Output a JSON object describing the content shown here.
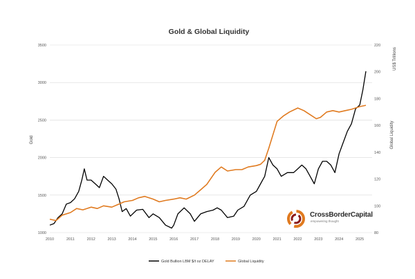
{
  "chart_data": {
    "type": "line",
    "title": "Gold & Global Liquidity",
    "xlabel": "",
    "ylabel_left": "Gold",
    "ylabel_right_top": "US$ Trillions",
    "ylabel_right": "Global Liquidity",
    "x_ticks": [
      "2010",
      "2011",
      "2012",
      "2013",
      "2014",
      "2015",
      "2016",
      "2017",
      "2018",
      "2019",
      "2020",
      "2021",
      "2022",
      "2023",
      "2024",
      "2025"
    ],
    "y_left_ticks": [
      "1000",
      "1500",
      "2000",
      "2500",
      "3000",
      "3500"
    ],
    "y_left_lim": [
      1000,
      3500
    ],
    "y_right_ticks": [
      "80",
      "100",
      "120",
      "140",
      "160",
      "180",
      "200",
      "220"
    ],
    "y_right_lim": [
      80,
      220
    ],
    "grid": "horizontal",
    "legend": "bottom",
    "series": [
      {
        "name": "Gold Bullion LBM $/t oz DELAY",
        "axis": "left",
        "color": "#000000",
        "x": [
          2010.0,
          2010.2,
          2010.4,
          2010.6,
          2010.8,
          2011.0,
          2011.2,
          2011.4,
          2011.55,
          2011.67,
          2011.8,
          2012.0,
          2012.2,
          2012.4,
          2012.6,
          2012.8,
          2013.0,
          2013.2,
          2013.35,
          2013.5,
          2013.7,
          2013.9,
          2014.2,
          2014.5,
          2014.8,
          2015.0,
          2015.3,
          2015.6,
          2015.9,
          2016.0,
          2016.2,
          2016.5,
          2016.8,
          2017.0,
          2017.3,
          2017.6,
          2017.9,
          2018.1,
          2018.3,
          2018.6,
          2018.9,
          2019.1,
          2019.4,
          2019.7,
          2020.0,
          2020.2,
          2020.4,
          2020.6,
          2020.8,
          2021.0,
          2021.2,
          2021.5,
          2021.8,
          2022.0,
          2022.2,
          2022.4,
          2022.6,
          2022.8,
          2023.0,
          2023.2,
          2023.4,
          2023.6,
          2023.8,
          2024.0,
          2024.2,
          2024.4,
          2024.6,
          2024.8,
          2025.0,
          2025.15,
          2025.3
        ],
        "values": [
          1100,
          1120,
          1200,
          1250,
          1380,
          1400,
          1450,
          1550,
          1700,
          1850,
          1700,
          1700,
          1650,
          1600,
          1750,
          1700,
          1650,
          1580,
          1450,
          1280,
          1320,
          1220,
          1300,
          1310,
          1200,
          1250,
          1200,
          1100,
          1060,
          1100,
          1250,
          1330,
          1250,
          1150,
          1250,
          1280,
          1300,
          1330,
          1300,
          1200,
          1220,
          1300,
          1350,
          1500,
          1550,
          1650,
          1750,
          2000,
          1900,
          1850,
          1750,
          1800,
          1800,
          1850,
          1900,
          1850,
          1750,
          1650,
          1850,
          1950,
          1950,
          1900,
          1800,
          2050,
          2200,
          2350,
          2450,
          2650,
          2700,
          2900,
          3150
        ]
      },
      {
        "name": "Global Liquidity",
        "axis": "right",
        "color": "#E07A1F",
        "x": [
          2010.0,
          2010.3,
          2010.6,
          2011.0,
          2011.3,
          2011.6,
          2012.0,
          2012.3,
          2012.6,
          2013.0,
          2013.3,
          2013.6,
          2014.0,
          2014.3,
          2014.6,
          2015.0,
          2015.3,
          2015.6,
          2016.0,
          2016.3,
          2016.6,
          2017.0,
          2017.3,
          2017.6,
          2018.0,
          2018.3,
          2018.6,
          2019.0,
          2019.3,
          2019.6,
          2020.0,
          2020.2,
          2020.4,
          2020.6,
          2020.8,
          2021.0,
          2021.3,
          2021.6,
          2022.0,
          2022.3,
          2022.6,
          2022.9,
          2023.1,
          2023.4,
          2023.7,
          2024.0,
          2024.3,
          2024.6,
          2025.0,
          2025.3
        ],
        "values": [
          90,
          89,
          93,
          95,
          98,
          97,
          99,
          98,
          100,
          99,
          101,
          103,
          104,
          106,
          107,
          105,
          103,
          104,
          105,
          106,
          105,
          108,
          112,
          116,
          125,
          129,
          126,
          127,
          127,
          129,
          130,
          131,
          134,
          143,
          153,
          163,
          167,
          170,
          173,
          171,
          168,
          165,
          166,
          170,
          171,
          170,
          171,
          172,
          174,
          175
        ]
      }
    ]
  },
  "logo": {
    "name": "CrossBorderCapital",
    "tagline": "empowering thought"
  }
}
